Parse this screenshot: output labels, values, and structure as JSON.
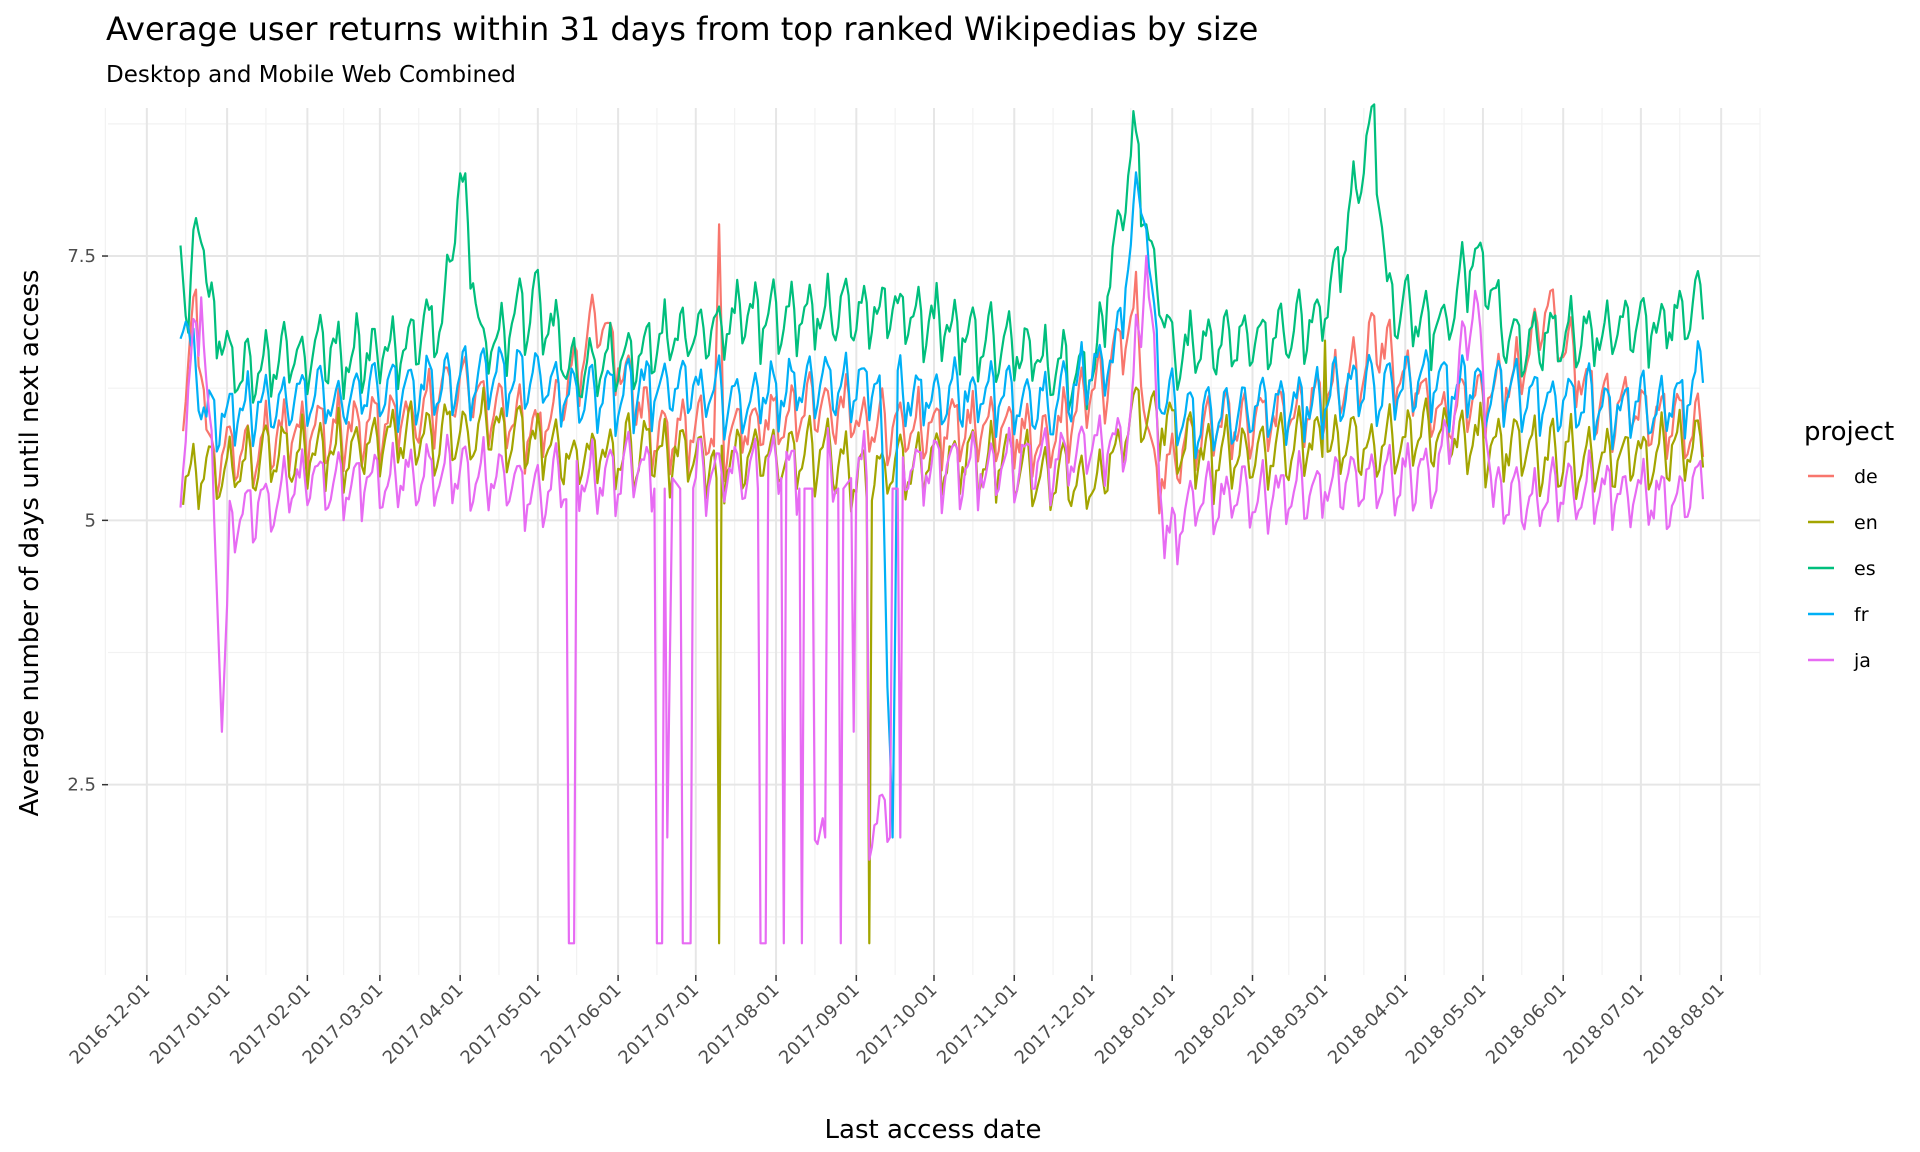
{
  "chart_data": {
    "type": "line",
    "title": "Average user returns within 31 days from top ranked Wikipedias by size",
    "subtitle": "Desktop and Mobile Web Combined",
    "xlabel": "Last access date",
    "ylabel": "Average number of days until next access",
    "x_range": [
      "2016-11-16",
      "2018-08-16"
    ],
    "ylim": [
      0.7,
      8.9
    ],
    "x_ticks": [
      "2016-12-01",
      "2017-01-01",
      "2017-02-01",
      "2017-03-01",
      "2017-04-01",
      "2017-05-01",
      "2017-06-01",
      "2017-07-01",
      "2017-08-01",
      "2017-09-01",
      "2017-10-01",
      "2017-11-01",
      "2017-12-01",
      "2018-01-01",
      "2018-02-01",
      "2018-03-01",
      "2018-04-01",
      "2018-05-01",
      "2018-06-01",
      "2018-07-01",
      "2018-08-01"
    ],
    "y_ticks": [
      {
        "value": 2.5,
        "label": "2.5"
      },
      {
        "value": 5,
        "label": "5"
      },
      {
        "value": 7.5,
        "label": "7.5"
      }
    ],
    "grid": true,
    "legend": {
      "title": "project",
      "placement": "right"
    },
    "series": [
      {
        "name": "de",
        "color": "#F8766D",
        "points": [
          [
            "2016-12-15",
            5.9
          ],
          [
            "2016-12-20",
            7.0
          ],
          [
            "2016-12-25",
            5.4
          ],
          [
            "2017-01-15",
            5.6
          ],
          [
            "2017-02-15",
            5.7
          ],
          [
            "2017-03-15",
            5.8
          ],
          [
            "2017-04-01",
            6.1
          ],
          [
            "2017-05-01",
            5.6
          ],
          [
            "2017-05-25",
            6.7
          ],
          [
            "2017-06-15",
            5.6
          ],
          [
            "2017-07-08",
            5.7
          ],
          [
            "2017-07-10",
            7.8
          ],
          [
            "2017-07-12",
            5.6
          ],
          [
            "2017-08-15",
            5.9
          ],
          [
            "2017-09-15",
            5.7
          ],
          [
            "2017-10-15",
            5.7
          ],
          [
            "2017-11-15",
            5.6
          ],
          [
            "2017-12-05",
            6.1
          ],
          [
            "2017-12-18",
            6.8
          ],
          [
            "2017-12-25",
            5.2
          ],
          [
            "2018-01-15",
            5.7
          ],
          [
            "2018-02-15",
            5.8
          ],
          [
            "2018-03-15",
            6.2
          ],
          [
            "2018-03-18",
            6.6
          ],
          [
            "2018-04-15",
            5.8
          ],
          [
            "2018-05-15",
            6.2
          ],
          [
            "2018-05-25",
            6.8
          ],
          [
            "2018-06-15",
            5.9
          ],
          [
            "2018-07-15",
            5.8
          ],
          [
            "2018-07-25",
            5.6
          ]
        ]
      },
      {
        "name": "en",
        "color": "#A3A500",
        "points": [
          [
            "2016-12-15",
            5.2
          ],
          [
            "2017-01-15",
            5.4
          ],
          [
            "2017-02-15",
            5.5
          ],
          [
            "2017-03-15",
            5.6
          ],
          [
            "2017-04-15",
            5.7
          ],
          [
            "2017-05-15",
            5.4
          ],
          [
            "2017-06-15",
            5.5
          ],
          [
            "2017-07-09",
            5.4
          ],
          [
            "2017-07-10",
            1.0
          ],
          [
            "2017-07-11",
            5.4
          ],
          [
            "2017-08-15",
            5.5
          ],
          [
            "2017-09-05",
            5.2
          ],
          [
            "2017-09-06",
            1.0
          ],
          [
            "2017-09-07",
            5.3
          ],
          [
            "2017-10-15",
            5.4
          ],
          [
            "2017-11-15",
            5.3
          ],
          [
            "2017-12-01",
            5.1
          ],
          [
            "2017-12-20",
            5.9
          ],
          [
            "2018-01-15",
            5.4
          ],
          [
            "2018-02-15",
            5.5
          ],
          [
            "2018-02-28",
            5.6
          ],
          [
            "2018-03-01",
            6.7
          ],
          [
            "2018-03-02",
            5.5
          ],
          [
            "2018-04-15",
            5.6
          ],
          [
            "2018-05-15",
            5.5
          ],
          [
            "2018-06-15",
            5.4
          ],
          [
            "2018-07-15",
            5.5
          ],
          [
            "2018-07-25",
            5.5
          ]
        ]
      },
      {
        "name": "es",
        "color": "#00BF7D",
        "points": [
          [
            "2016-12-14",
            7.6
          ],
          [
            "2016-12-17",
            6.6
          ],
          [
            "2016-12-21",
            7.9
          ],
          [
            "2016-12-25",
            6.8
          ],
          [
            "2017-01-05",
            6.2
          ],
          [
            "2017-02-01",
            6.4
          ],
          [
            "2017-03-01",
            6.4
          ],
          [
            "2017-03-25",
            6.7
          ],
          [
            "2017-04-01",
            8.1
          ],
          [
            "2017-04-10",
            6.4
          ],
          [
            "2017-05-01",
            6.9
          ],
          [
            "2017-05-15",
            6.2
          ],
          [
            "2017-06-15",
            6.5
          ],
          [
            "2017-07-15",
            6.7
          ],
          [
            "2017-08-15",
            6.8
          ],
          [
            "2017-09-15",
            6.8
          ],
          [
            "2017-10-15",
            6.6
          ],
          [
            "2017-11-15",
            6.3
          ],
          [
            "2017-12-01",
            6.2
          ],
          [
            "2017-12-10",
            7.4
          ],
          [
            "2017-12-17",
            8.5
          ],
          [
            "2017-12-25",
            7.2
          ],
          [
            "2018-01-01",
            6.4
          ],
          [
            "2018-01-20",
            6.5
          ],
          [
            "2018-02-15",
            6.6
          ],
          [
            "2018-03-01",
            6.8
          ],
          [
            "2018-03-20",
            8.6
          ],
          [
            "2018-03-25",
            6.9
          ],
          [
            "2018-04-15",
            6.6
          ],
          [
            "2018-04-28",
            7.4
          ],
          [
            "2018-05-10",
            6.5
          ],
          [
            "2018-06-15",
            6.6
          ],
          [
            "2018-07-15",
            6.7
          ],
          [
            "2018-07-25",
            6.9
          ]
        ]
      },
      {
        "name": "fr",
        "color": "#00B0F6",
        "points": [
          [
            "2016-12-14",
            6.9
          ],
          [
            "2016-12-20",
            6.2
          ],
          [
            "2016-12-25",
            5.8
          ],
          [
            "2017-01-15",
            5.9
          ],
          [
            "2017-02-15",
            6.0
          ],
          [
            "2017-03-15",
            6.1
          ],
          [
            "2017-04-10",
            6.2
          ],
          [
            "2017-05-01",
            6.2
          ],
          [
            "2017-05-20",
            6.0
          ],
          [
            "2017-06-15",
            6.1
          ],
          [
            "2017-07-15",
            6.0
          ],
          [
            "2017-08-15",
            6.1
          ],
          [
            "2017-09-10",
            6.1
          ],
          [
            "2017-09-15",
            2.0
          ],
          [
            "2017-09-17",
            6.0
          ],
          [
            "2017-10-15",
            6.0
          ],
          [
            "2017-11-15",
            5.9
          ],
          [
            "2017-12-10",
            6.4
          ],
          [
            "2017-12-20",
            8.1
          ],
          [
            "2017-12-28",
            5.9
          ],
          [
            "2018-01-15",
            5.8
          ],
          [
            "2018-02-15",
            5.9
          ],
          [
            "2018-03-15",
            6.1
          ],
          [
            "2018-04-15",
            6.1
          ],
          [
            "2018-05-15",
            6.0
          ],
          [
            "2018-06-15",
            5.9
          ],
          [
            "2018-07-15",
            5.9
          ],
          [
            "2018-07-25",
            6.3
          ]
        ]
      },
      {
        "name": "ja",
        "color": "#E76BF3",
        "points": [
          [
            "2016-12-14",
            5.3
          ],
          [
            "2016-12-22",
            7.0
          ],
          [
            "2016-12-27",
            5.0
          ],
          [
            "2016-12-30",
            3.0
          ],
          [
            "2017-01-02",
            4.8
          ],
          [
            "2017-02-01",
            5.2
          ],
          [
            "2017-03-01",
            5.2
          ],
          [
            "2017-04-01",
            5.3
          ],
          [
            "2017-05-01",
            5.1
          ],
          [
            "2017-05-12",
            5.2
          ],
          [
            "2017-05-13",
            1.0
          ],
          [
            "2017-05-15",
            1.0
          ],
          [
            "2017-05-16",
            5.2
          ],
          [
            "2017-06-15",
            5.3
          ],
          [
            "2017-06-16",
            1.0
          ],
          [
            "2017-06-18",
            1.0
          ],
          [
            "2017-06-19",
            5.3
          ],
          [
            "2017-06-20",
            2.0
          ],
          [
            "2017-06-22",
            5.4
          ],
          [
            "2017-06-25",
            5.3
          ],
          [
            "2017-06-26",
            1.0
          ],
          [
            "2017-06-29",
            1.0
          ],
          [
            "2017-06-30",
            5.3
          ],
          [
            "2017-07-25",
            5.3
          ],
          [
            "2017-07-26",
            1.0
          ],
          [
            "2017-07-28",
            1.0
          ],
          [
            "2017-07-29",
            5.3
          ],
          [
            "2017-08-03",
            5.4
          ],
          [
            "2017-08-04",
            1.0
          ],
          [
            "2017-08-05",
            5.3
          ],
          [
            "2017-08-10",
            5.3
          ],
          [
            "2017-08-11",
            1.0
          ],
          [
            "2017-08-12",
            5.3
          ],
          [
            "2017-08-15",
            5.3
          ],
          [
            "2017-08-16",
            2.0
          ],
          [
            "2017-08-20",
            2.0
          ],
          [
            "2017-08-21",
            5.3
          ],
          [
            "2017-08-25",
            5.3
          ],
          [
            "2017-08-26",
            1.0
          ],
          [
            "2017-08-27",
            5.3
          ],
          [
            "2017-08-30",
            5.4
          ],
          [
            "2017-08-31",
            3.0
          ],
          [
            "2017-09-01",
            5.3
          ],
          [
            "2017-09-05",
            5.4
          ],
          [
            "2017-09-06",
            2.0
          ],
          [
            "2017-09-14",
            2.0
          ],
          [
            "2017-09-15",
            5.3
          ],
          [
            "2017-09-17",
            5.3
          ],
          [
            "2017-09-18",
            2.0
          ],
          [
            "2017-09-19",
            5.3
          ],
          [
            "2017-10-15",
            5.3
          ],
          [
            "2017-11-15",
            5.4
          ],
          [
            "2017-12-15",
            5.6
          ],
          [
            "2017-12-22",
            7.4
          ],
          [
            "2017-12-29",
            4.6
          ],
          [
            "2018-01-10",
            5.0
          ],
          [
            "2018-02-15",
            5.1
          ],
          [
            "2018-03-15",
            5.2
          ],
          [
            "2018-04-15",
            5.3
          ],
          [
            "2018-04-28",
            7.0
          ],
          [
            "2018-05-05",
            5.0
          ],
          [
            "2018-06-15",
            5.1
          ],
          [
            "2018-07-15",
            5.0
          ],
          [
            "2018-07-25",
            5.2
          ]
        ]
      }
    ]
  }
}
